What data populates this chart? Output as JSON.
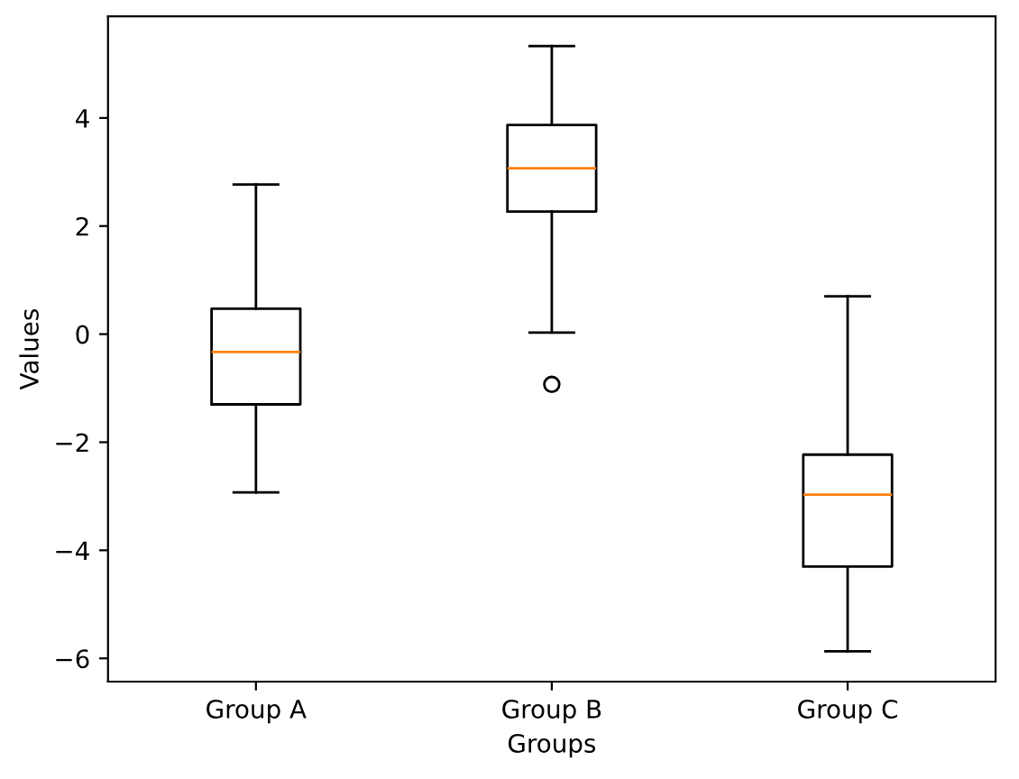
{
  "chart_data": {
    "type": "box",
    "xlabel": "Groups",
    "ylabel": "Values",
    "categories": [
      "Group A",
      "Group B",
      "Group C"
    ],
    "boxes": [
      {
        "low": -2.93,
        "q1": -1.3,
        "median": -0.33,
        "q3": 0.47,
        "high": 2.77
      },
      {
        "low": 0.03,
        "q1": 2.27,
        "median": 3.07,
        "q3": 3.87,
        "high": 5.33,
        "outliers": [
          -0.93
        ]
      },
      {
        "low": -5.87,
        "q1": -4.3,
        "median": -2.97,
        "q3": -2.23,
        "high": 0.7
      }
    ],
    "color": "#000000",
    "ylim": [
      -6.43,
      5.88
    ],
    "yticks": [
      {
        "value": -6,
        "label": "−6"
      },
      {
        "value": -4,
        "label": "−4"
      },
      {
        "value": -2,
        "label": "−2"
      },
      0,
      2,
      4
    ],
    "grid": false
  }
}
